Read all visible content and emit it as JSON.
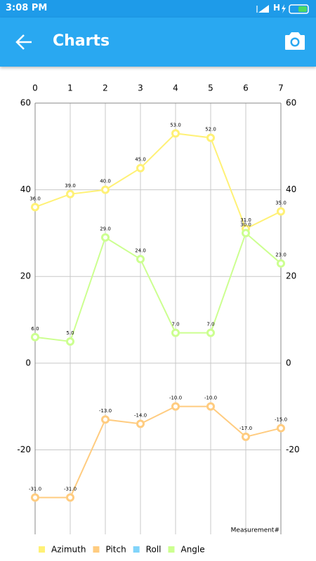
{
  "status_bar": {
    "time": "3:08 PM",
    "network": "H"
  },
  "app_bar": {
    "title": "Charts"
  },
  "chart_data": {
    "type": "line",
    "x": [
      0,
      1,
      2,
      3,
      4,
      5,
      6,
      7
    ],
    "xlim": [
      0,
      7
    ],
    "xticks": [
      0,
      1,
      2,
      3,
      4,
      5,
      6,
      7
    ],
    "ylim": [
      -39.5,
      60
    ],
    "yticks": [
      -20,
      0,
      20,
      40,
      60
    ],
    "x_label": "Measurement#",
    "grid": true,
    "legend": "bottom-left",
    "series": [
      {
        "name": "Azimuth",
        "color": "#fff176",
        "values": [
          36,
          39,
          40,
          45,
          53,
          52,
          31,
          35
        ],
        "value_labels": [
          "36.0",
          "39.0",
          "40.0",
          "45.0",
          "53.0",
          "52.0",
          "31.0",
          "35.0"
        ]
      },
      {
        "name": "Pitch",
        "color": "#ffcc80",
        "values": [
          -31,
          -31,
          -13,
          -14,
          -10,
          -10,
          -17,
          -15
        ],
        "value_labels": [
          "-31.0",
          "-31.0",
          "-13.0",
          "-14.0",
          "-10.0",
          "-10.0",
          "-17.0",
          "-15.0"
        ]
      },
      {
        "name": "Roll",
        "color": "#81d4fa",
        "values": [
          null,
          null,
          null,
          null,
          null,
          null,
          null,
          null
        ]
      },
      {
        "name": "Angle",
        "color": "#ccff90",
        "values": [
          6,
          5,
          29,
          24,
          7,
          7,
          30,
          23
        ],
        "value_labels": [
          "6.0",
          "5.0",
          "29.0",
          "24.0",
          "7.0",
          "7.0",
          "30.0",
          "23.0"
        ]
      }
    ]
  }
}
